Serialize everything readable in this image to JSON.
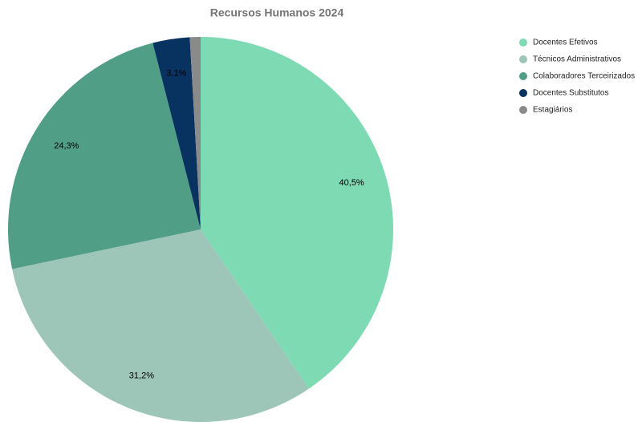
{
  "chart_data": {
    "type": "pie",
    "title": "Recursos Humanos 2024",
    "categories": [
      "Docentes Efetivos",
      "Técnicos Administrativos",
      "Colaboradores Terceirizados",
      "Docentes Substitutos",
      "Estagiários"
    ],
    "values": [
      40.5,
      31.2,
      24.3,
      3.1,
      0.9
    ],
    "value_labels": [
      "40,5%",
      "31,2%",
      "24,3%",
      "3,1%",
      null
    ],
    "colors": [
      "#7ddab3",
      "#9dc6b8",
      "#519e87",
      "#08325f",
      "#8a8a8a"
    ],
    "legend": "top-right"
  }
}
